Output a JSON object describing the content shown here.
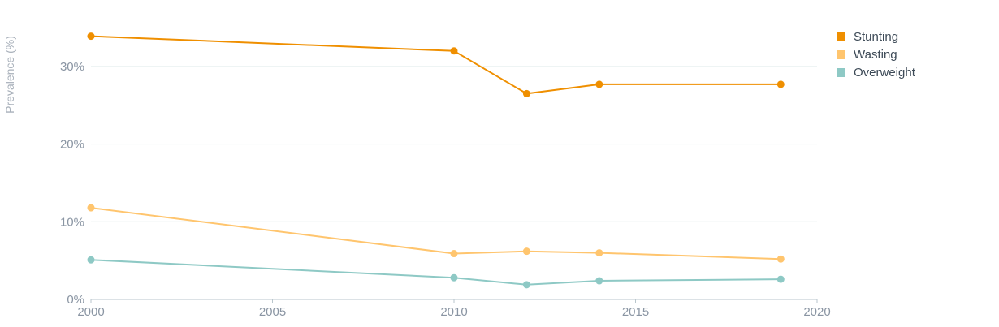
{
  "chart_data": {
    "type": "line",
    "title": "",
    "xlabel": "",
    "ylabel": "Prevalence (%)",
    "xlim": [
      2000,
      2020
    ],
    "ylim": [
      0,
      35
    ],
    "x_ticks": [
      "2000",
      "2005",
      "2010",
      "2015",
      "2020"
    ],
    "y_ticks": [
      "0%",
      "10%",
      "20%",
      "30%"
    ],
    "grid": true,
    "legend_position": "top-right",
    "series": [
      {
        "name": "Stunting",
        "color": "#ef8f00",
        "points": [
          [
            2000,
            33.9
          ],
          [
            2010,
            32.0
          ],
          [
            2012,
            26.5
          ],
          [
            2014,
            27.7
          ],
          [
            2019,
            27.7
          ]
        ]
      },
      {
        "name": "Wasting",
        "color": "#ffc56e",
        "points": [
          [
            2000,
            11.8
          ],
          [
            2010,
            5.9
          ],
          [
            2012,
            6.2
          ],
          [
            2014,
            6.0
          ],
          [
            2019,
            5.2
          ]
        ]
      },
      {
        "name": "Overweight",
        "color": "#8ec9c5",
        "points": [
          [
            2000,
            5.1
          ],
          [
            2010,
            2.8
          ],
          [
            2012,
            1.9
          ],
          [
            2014,
            2.4
          ],
          [
            2019,
            2.6
          ]
        ]
      }
    ]
  }
}
